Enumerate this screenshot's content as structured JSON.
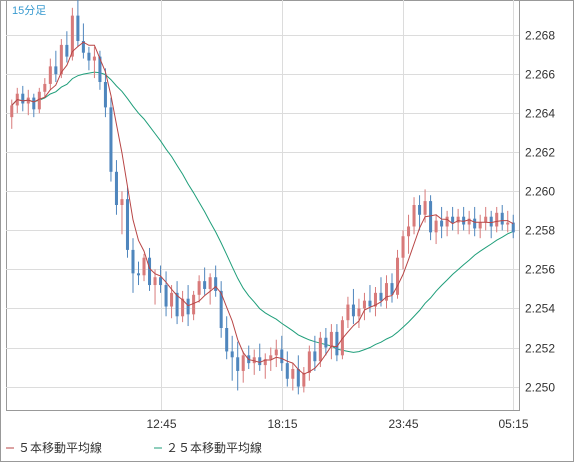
{
  "chart_data": {
    "type": "candlestick",
    "period_label": "15分足",
    "y_tick_labels": [
      "2.268",
      "2.266",
      "2.264",
      "2.262",
      "2.260",
      "2.258",
      "2.256",
      "2.254",
      "2.252",
      "2.250"
    ],
    "x_tick_labels": [
      "12:45",
      "18:15",
      "23:45",
      "05:15"
    ],
    "ylim": [
      2.2488,
      2.2698
    ],
    "grid": true,
    "colors": {
      "up": "#d87a7a",
      "down": "#4f86bd",
      "ma5": "#b84545",
      "ma25": "#1f9e7a",
      "period_label": "#3a9bd0"
    },
    "candles": [
      [
        2.2638,
        2.2647,
        2.2632,
        2.2644
      ],
      [
        2.2644,
        2.2653,
        2.264,
        2.265
      ],
      [
        2.265,
        2.2654,
        2.2641,
        2.2645
      ],
      [
        2.2645,
        2.2652,
        2.2639,
        2.2648
      ],
      [
        2.2648,
        2.265,
        2.2638,
        2.2642
      ],
      [
        2.2642,
        2.2653,
        2.264,
        2.2651
      ],
      [
        2.2651,
        2.2658,
        2.2648,
        2.2655
      ],
      [
        2.2655,
        2.2668,
        2.2652,
        2.2664
      ],
      [
        2.2664,
        2.2672,
        2.2656,
        2.266
      ],
      [
        2.266,
        2.2678,
        2.2658,
        2.2675
      ],
      [
        2.2675,
        2.2682,
        2.2666,
        2.2669
      ],
      [
        2.2669,
        2.2694,
        2.2667,
        2.269
      ],
      [
        2.269,
        2.2698,
        2.2674,
        2.2677
      ],
      [
        2.2677,
        2.2686,
        2.2668,
        2.2671
      ],
      [
        2.2671,
        2.2674,
        2.2662,
        2.2667
      ],
      [
        2.2667,
        2.2674,
        2.2658,
        2.2669
      ],
      [
        2.2669,
        2.2672,
        2.2652,
        2.2656
      ],
      [
        2.2656,
        2.2663,
        2.2638,
        2.2643
      ],
      [
        2.2643,
        2.2648,
        2.2605,
        2.261
      ],
      [
        2.261,
        2.2616,
        2.2588,
        2.2593
      ],
      [
        2.2593,
        2.26,
        2.2578,
        2.2596
      ],
      [
        2.2596,
        2.2602,
        2.2566,
        2.257
      ],
      [
        2.257,
        2.2576,
        2.2548,
        2.2558
      ],
      [
        2.2558,
        2.2564,
        2.2552,
        2.2557
      ],
      [
        2.2557,
        2.2568,
        2.2554,
        2.2566
      ],
      [
        2.2566,
        2.2571,
        2.2549,
        2.2552
      ],
      [
        2.2552,
        2.256,
        2.2542,
        2.2556
      ],
      [
        2.2556,
        2.2562,
        2.2548,
        2.2552
      ],
      [
        2.2552,
        2.2559,
        2.2536,
        2.2541
      ],
      [
        2.2541,
        2.2552,
        2.2535,
        2.2548
      ],
      [
        2.2548,
        2.2554,
        2.2532,
        2.2536
      ],
      [
        2.2536,
        2.2549,
        2.2533,
        2.2545
      ],
      [
        2.2545,
        2.2552,
        2.2531,
        2.2537
      ],
      [
        2.2537,
        2.2549,
        2.2534,
        2.2547
      ],
      [
        2.2547,
        2.2557,
        2.2543,
        2.2554
      ],
      [
        2.2554,
        2.2561,
        2.2547,
        2.255
      ],
      [
        2.255,
        2.2558,
        2.2542,
        2.2556
      ],
      [
        2.2556,
        2.2562,
        2.2546,
        2.2549
      ],
      [
        2.2549,
        2.2554,
        2.2525,
        2.253
      ],
      [
        2.253,
        2.2536,
        2.2514,
        2.2518
      ],
      [
        2.2518,
        2.2526,
        2.2503,
        2.2515
      ],
      [
        2.2515,
        2.2523,
        2.2498,
        2.2508
      ],
      [
        2.2508,
        2.2518,
        2.2502,
        2.2516
      ],
      [
        2.2516,
        2.2521,
        2.2509,
        2.2512
      ],
      [
        2.2512,
        2.2519,
        2.2506,
        2.2515
      ],
      [
        2.2515,
        2.2522,
        2.2508,
        2.2511
      ],
      [
        2.2511,
        2.2517,
        2.2504,
        2.2514
      ],
      [
        2.2514,
        2.252,
        2.2508,
        2.2516
      ],
      [
        2.2516,
        2.2524,
        2.251,
        2.2519
      ],
      [
        2.2519,
        2.2526,
        2.2508,
        2.2512
      ],
      [
        2.2512,
        2.2518,
        2.25,
        2.2504
      ],
      [
        2.2504,
        2.2512,
        2.2498,
        2.2509
      ],
      [
        2.2509,
        2.2516,
        2.2496,
        2.25
      ],
      [
        2.25,
        2.251,
        2.2497,
        2.2507
      ],
      [
        2.2507,
        2.2521,
        2.2503,
        2.2518
      ],
      [
        2.2518,
        2.2526,
        2.2508,
        2.2513
      ],
      [
        2.2513,
        2.2528,
        2.251,
        2.2525
      ],
      [
        2.2525,
        2.253,
        2.2516,
        2.252
      ],
      [
        2.252,
        2.2532,
        2.2514,
        2.2528
      ],
      [
        2.2528,
        2.2532,
        2.2513,
        2.2516
      ],
      [
        2.2516,
        2.2536,
        2.2514,
        2.2534
      ],
      [
        2.2534,
        2.2546,
        2.253,
        2.2542
      ],
      [
        2.2542,
        2.255,
        2.2532,
        2.2536
      ],
      [
        2.2536,
        2.2545,
        2.253,
        2.254
      ],
      [
        2.254,
        2.2548,
        2.2534,
        2.2544
      ],
      [
        2.2544,
        2.2552,
        2.2538,
        2.2541
      ],
      [
        2.2541,
        2.2551,
        2.2536,
        2.2548
      ],
      [
        2.2548,
        2.2556,
        2.2541,
        2.2544
      ],
      [
        2.2544,
        2.2557,
        2.254,
        2.2553
      ],
      [
        2.2553,
        2.2558,
        2.2543,
        2.2547
      ],
      [
        2.2547,
        2.257,
        2.2545,
        2.2566
      ],
      [
        2.2566,
        2.258,
        2.256,
        2.2577
      ],
      [
        2.2577,
        2.2588,
        2.2568,
        2.2582
      ],
      [
        2.2582,
        2.2597,
        2.2578,
        2.2593
      ],
      [
        2.2593,
        2.2598,
        2.258,
        2.2588
      ],
      [
        2.2588,
        2.2601,
        2.2584,
        2.2595
      ],
      [
        2.2595,
        2.2598,
        2.2575,
        2.2579
      ],
      [
        2.2579,
        2.2588,
        2.2573,
        2.2585
      ],
      [
        2.2585,
        2.2592,
        2.2576,
        2.2582
      ],
      [
        2.2582,
        2.259,
        2.2577,
        2.2587
      ],
      [
        2.2587,
        2.2592,
        2.258,
        2.2584
      ],
      [
        2.2584,
        2.2591,
        2.2578,
        2.2587
      ],
      [
        2.2587,
        2.2592,
        2.258,
        2.2583
      ],
      [
        2.2583,
        2.259,
        2.2578,
        2.2586
      ],
      [
        2.2586,
        2.2592,
        2.2577,
        2.2581
      ],
      [
        2.2581,
        2.2588,
        2.2576,
        2.2584
      ],
      [
        2.2584,
        2.2592,
        2.258,
        2.2587
      ],
      [
        2.2587,
        2.259,
        2.2576,
        2.2582
      ],
      [
        2.2582,
        2.2592,
        2.2579,
        2.2589
      ],
      [
        2.2589,
        2.2593,
        2.258,
        2.2583
      ],
      [
        2.2583,
        2.259,
        2.2579,
        2.2584
      ],
      [
        2.2584,
        2.2588,
        2.2576,
        2.2579
      ]
    ],
    "legend": [
      {
        "label": "５本移動平均線",
        "color_key": "ma5"
      },
      {
        "label": "２５本移動平均線",
        "color_key": "ma25"
      }
    ]
  }
}
